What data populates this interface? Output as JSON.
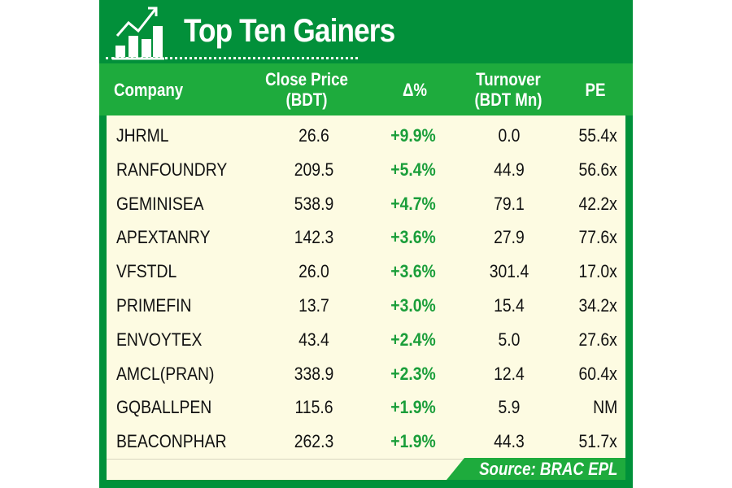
{
  "title": "Top Ten Gainers",
  "icon": "rising-bar-chart-icon",
  "colors": {
    "dark_green": "#02903a",
    "header_green": "#1eab3d",
    "body_bg": "#fdfbe2",
    "gain_text": "#1a9e3a"
  },
  "chart_data": {
    "type": "table",
    "title": "Top Ten Gainers",
    "columns": [
      "Company",
      "Close Price (BDT)",
      "Δ%",
      "Turnover (BDT Mn)",
      "PE"
    ],
    "header": {
      "company": "Company",
      "close_line1": "Close Price",
      "close_line2": "(BDT)",
      "delta": "Δ%",
      "turnover_line1": "Turnover",
      "turnover_line2": "(BDT Mn)",
      "pe": "PE"
    },
    "rows": [
      {
        "company": "JHRML",
        "close": "26.6",
        "delta": "+9.9%",
        "turnover": "0.0",
        "pe": "55.4x"
      },
      {
        "company": "RANFOUNDRY",
        "close": "209.5",
        "delta": "+5.4%",
        "turnover": "44.9",
        "pe": "56.6x"
      },
      {
        "company": "GEMINISEA",
        "close": "538.9",
        "delta": "+4.7%",
        "turnover": "79.1",
        "pe": "42.2x"
      },
      {
        "company": "APEXTANRY",
        "close": "142.3",
        "delta": "+3.6%",
        "turnover": "27.9",
        "pe": "77.6x"
      },
      {
        "company": "VFSTDL",
        "close": "26.0",
        "delta": "+3.6%",
        "turnover": "301.4",
        "pe": "17.0x"
      },
      {
        "company": "PRIMEFIN",
        "close": "13.7",
        "delta": "+3.0%",
        "turnover": "15.4",
        "pe": "34.2x"
      },
      {
        "company": "ENVOYTEX",
        "close": "43.4",
        "delta": "+2.4%",
        "turnover": "5.0",
        "pe": "27.6x"
      },
      {
        "company": "AMCL(PRAN)",
        "close": "338.9",
        "delta": "+2.3%",
        "turnover": "12.4",
        "pe": "60.4x"
      },
      {
        "company": "GQBALLPEN",
        "close": "115.6",
        "delta": "+1.9%",
        "turnover": "5.9",
        "pe": "NM"
      },
      {
        "company": "BEACONPHAR",
        "close": "262.3",
        "delta": "+1.9%",
        "turnover": "44.3",
        "pe": "51.7x"
      }
    ],
    "source": "Source: BRAC EPL"
  }
}
